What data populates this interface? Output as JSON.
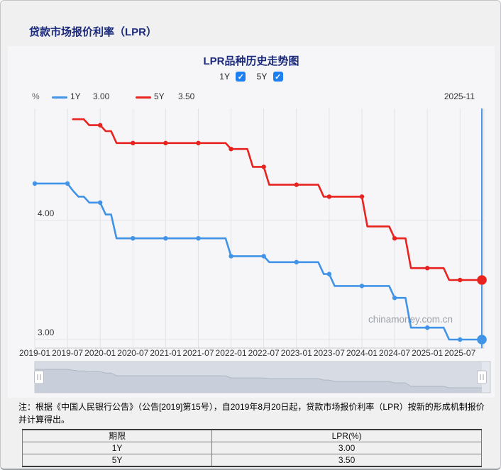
{
  "page": {
    "title": "贷款市场报价利率（LPR）",
    "note_line1": "注：根据《中国人民银行公告》（公告[2019]第15号），自2019年8月20日起，贷款市场报价利率（LPR）按新的形成机制报价",
    "note_line2": "并计算得出。"
  },
  "chart": {
    "title": "LPR品种历史走势图",
    "checkboxes": [
      {
        "label": "1Y",
        "checked": true
      },
      {
        "label": "5Y",
        "checked": true
      }
    ],
    "legend": {
      "unit": "%",
      "items": [
        {
          "label": "1Y",
          "value": "3.00",
          "color": "#4193e8"
        },
        {
          "label": "5Y",
          "value": "3.50",
          "color": "#e8221e"
        }
      ]
    },
    "current_date_label": "2025-11",
    "watermark": "chinamoney.com.cn"
  },
  "chart_data": {
    "type": "line",
    "title": "LPR品种历史走势图",
    "x_start_month": "2019-01",
    "x_end_month": "2025-11",
    "months_total": 83,
    "x_ticks": [
      "2019-01",
      "2019-07",
      "2020-01",
      "2020-07",
      "2021-01",
      "2021-07",
      "2022-01",
      "2022-07",
      "2023-01",
      "2023-07",
      "2024-01",
      "2024-07",
      "2025-01",
      "2025-07"
    ],
    "x_tick_interval_months": 6,
    "ylabel": "%",
    "ylim": [
      2.94,
      4.95
    ],
    "y_gridlines": [
      3.0,
      4.0
    ],
    "series": [
      {
        "name": "1Y",
        "color": "#4193e8",
        "start_index": 0,
        "values": [
          4.31,
          4.31,
          4.31,
          4.31,
          4.31,
          4.31,
          4.31,
          4.25,
          4.2,
          4.2,
          4.15,
          4.15,
          4.15,
          4.05,
          4.05,
          3.85,
          3.85,
          3.85,
          3.85,
          3.85,
          3.85,
          3.85,
          3.85,
          3.85,
          3.85,
          3.85,
          3.85,
          3.85,
          3.85,
          3.85,
          3.85,
          3.85,
          3.85,
          3.85,
          3.85,
          3.85,
          3.7,
          3.7,
          3.7,
          3.7,
          3.7,
          3.7,
          3.7,
          3.65,
          3.65,
          3.65,
          3.65,
          3.65,
          3.65,
          3.65,
          3.65,
          3.65,
          3.65,
          3.55,
          3.55,
          3.45,
          3.45,
          3.45,
          3.45,
          3.45,
          3.45,
          3.45,
          3.45,
          3.45,
          3.45,
          3.45,
          3.35,
          3.35,
          3.35,
          3.1,
          3.1,
          3.1,
          3.1,
          3.1,
          3.1,
          3.1,
          3.0,
          3.0,
          3.0,
          3.0,
          3.0,
          3.0,
          3.0
        ]
      },
      {
        "name": "5Y",
        "color": "#e8221e",
        "start_index": 7,
        "values": [
          4.85,
          4.85,
          4.85,
          4.8,
          4.8,
          4.8,
          4.75,
          4.75,
          4.65,
          4.65,
          4.65,
          4.65,
          4.65,
          4.65,
          4.65,
          4.65,
          4.65,
          4.65,
          4.65,
          4.65,
          4.65,
          4.65,
          4.65,
          4.65,
          4.65,
          4.65,
          4.65,
          4.65,
          4.65,
          4.6,
          4.6,
          4.6,
          4.6,
          4.45,
          4.45,
          4.45,
          4.3,
          4.3,
          4.3,
          4.3,
          4.3,
          4.3,
          4.3,
          4.3,
          4.3,
          4.3,
          4.2,
          4.2,
          4.2,
          4.2,
          4.2,
          4.2,
          4.2,
          4.2,
          3.95,
          3.95,
          3.95,
          3.95,
          3.95,
          3.85,
          3.85,
          3.85,
          3.6,
          3.6,
          3.6,
          3.6,
          3.6,
          3.6,
          3.6,
          3.5,
          3.5,
          3.5,
          3.5,
          3.5,
          3.5,
          3.5
        ]
      }
    ],
    "current_values": {
      "1Y": 3.0,
      "5Y": 3.5
    },
    "legend_position": "top-left",
    "grid": true
  },
  "table": {
    "headers": [
      "期限",
      "LPR(%)"
    ],
    "rows": [
      [
        "1Y",
        "3.00"
      ],
      [
        "5Y",
        "3.50"
      ]
    ]
  }
}
